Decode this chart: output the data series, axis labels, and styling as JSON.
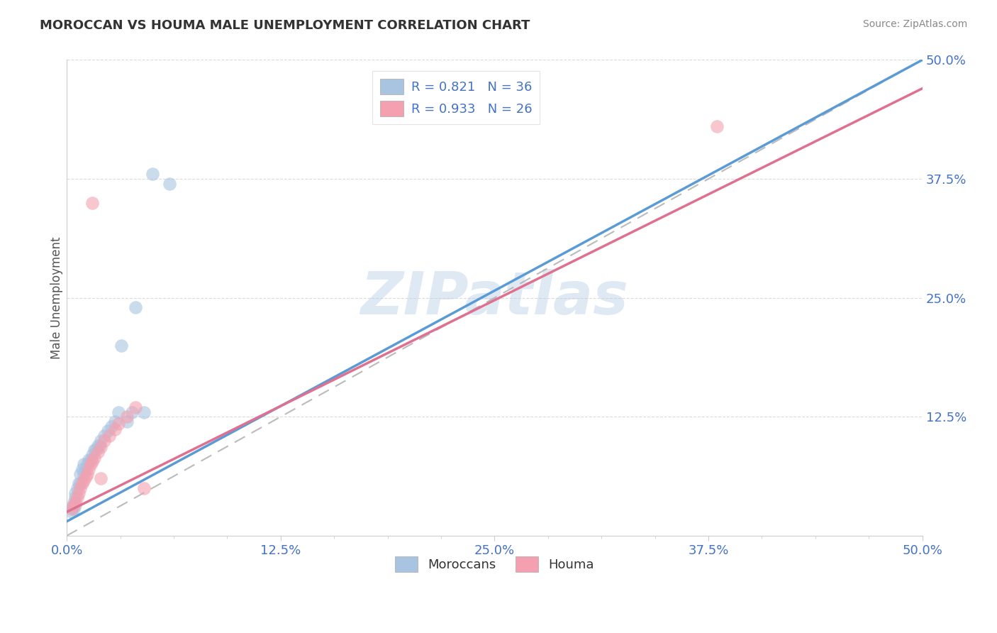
{
  "title": "MOROCCAN VS HOUMA MALE UNEMPLOYMENT CORRELATION CHART",
  "source_text": "Source: ZipAtlas.com",
  "ylabel": "Male Unemployment",
  "xlim": [
    0.0,
    0.5
  ],
  "ylim": [
    0.0,
    0.5
  ],
  "xtick_labels": [
    "0.0%",
    "",
    "",
    "",
    "",
    "",
    "",
    "",
    "12.5%",
    "",
    "",
    "",
    "",
    "",
    "",
    "",
    "25.0%",
    "",
    "",
    "",
    "",
    "",
    "",
    "",
    "37.5%",
    "",
    "",
    "",
    "",
    "",
    "",
    "",
    "50.0%"
  ],
  "xtick_vals": [
    0.0,
    0.015625,
    0.03125,
    0.046875,
    0.0625,
    0.078125,
    0.09375,
    0.109375,
    0.125,
    0.140625,
    0.15625,
    0.171875,
    0.1875,
    0.203125,
    0.21875,
    0.234375,
    0.25,
    0.265625,
    0.28125,
    0.296875,
    0.3125,
    0.328125,
    0.34375,
    0.359375,
    0.375,
    0.390625,
    0.40625,
    0.421875,
    0.4375,
    0.453125,
    0.46875,
    0.484375,
    0.5
  ],
  "ytick_labels": [
    "12.5%",
    "25.0%",
    "37.5%",
    "50.0%"
  ],
  "ytick_vals": [
    0.125,
    0.25,
    0.375,
    0.5
  ],
  "watermark": "ZIPatlas",
  "moroccans_color": "#a8c4e0",
  "houma_color": "#f4a0b0",
  "moroccans_line_color": "#5b9bd5",
  "houma_line_color": "#e07090",
  "R_moroccans": 0.821,
  "N_moroccans": 36,
  "R_houma": 0.933,
  "N_houma": 26,
  "legend_text_color": "#4472c4",
  "moroccans_x": [
    0.003,
    0.004,
    0.005,
    0.005,
    0.006,
    0.007,
    0.008,
    0.008,
    0.009,
    0.01,
    0.01,
    0.011,
    0.012,
    0.013,
    0.014,
    0.015,
    0.016,
    0.017,
    0.018,
    0.019,
    0.02,
    0.022,
    0.024,
    0.026,
    0.028,
    0.03,
    0.032,
    0.035,
    0.038,
    0.04,
    0.045,
    0.05,
    0.06,
    0.003,
    0.004,
    0.005
  ],
  "moroccans_y": [
    0.03,
    0.035,
    0.04,
    0.045,
    0.05,
    0.055,
    0.055,
    0.065,
    0.07,
    0.065,
    0.075,
    0.07,
    0.075,
    0.08,
    0.08,
    0.085,
    0.09,
    0.09,
    0.095,
    0.095,
    0.1,
    0.105,
    0.11,
    0.115,
    0.12,
    0.13,
    0.2,
    0.12,
    0.13,
    0.24,
    0.13,
    0.38,
    0.37,
    0.025,
    0.028,
    0.032
  ],
  "houma_x": [
    0.003,
    0.004,
    0.005,
    0.006,
    0.007,
    0.008,
    0.009,
    0.01,
    0.011,
    0.012,
    0.013,
    0.014,
    0.015,
    0.016,
    0.018,
    0.02,
    0.022,
    0.025,
    0.028,
    0.03,
    0.035,
    0.04,
    0.045,
    0.38,
    0.02,
    0.015
  ],
  "houma_y": [
    0.028,
    0.032,
    0.035,
    0.04,
    0.045,
    0.05,
    0.055,
    0.058,
    0.062,
    0.065,
    0.07,
    0.075,
    0.078,
    0.082,
    0.088,
    0.093,
    0.1,
    0.105,
    0.112,
    0.118,
    0.125,
    0.135,
    0.05,
    0.43,
    0.06,
    0.35
  ],
  "moroccans_line_x0": 0.0,
  "moroccans_line_y0": 0.015,
  "moroccans_line_x1": 0.5,
  "moroccans_line_y1": 0.5,
  "houma_line_x0": 0.0,
  "houma_line_y0": 0.025,
  "houma_line_x1": 0.5,
  "houma_line_y1": 0.47,
  "background_color": "#ffffff",
  "grid_color": "#cccccc"
}
